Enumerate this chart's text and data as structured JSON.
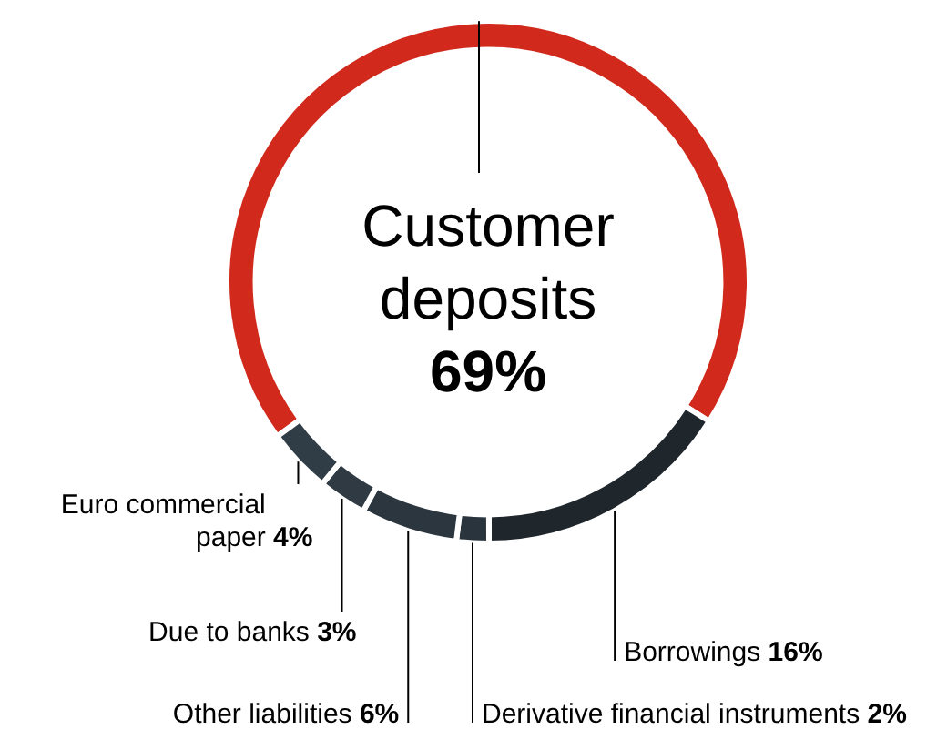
{
  "chart_data": {
    "type": "donut",
    "categories": [
      "Customer deposits",
      "Borrowings",
      "Derivative financial instruments",
      "Other liabilities",
      "Due to banks",
      "Euro commercial paper"
    ],
    "values": [
      69,
      16,
      2,
      6,
      3,
      4
    ],
    "colors": [
      "#d12a1d",
      "#1f262c",
      "#2a343c",
      "#2c363e",
      "#2f3a42",
      "#313d46"
    ],
    "value_labels": [
      "69%",
      "16%",
      "2%",
      "6%",
      "3%",
      "4%"
    ],
    "legend": false
  }
}
